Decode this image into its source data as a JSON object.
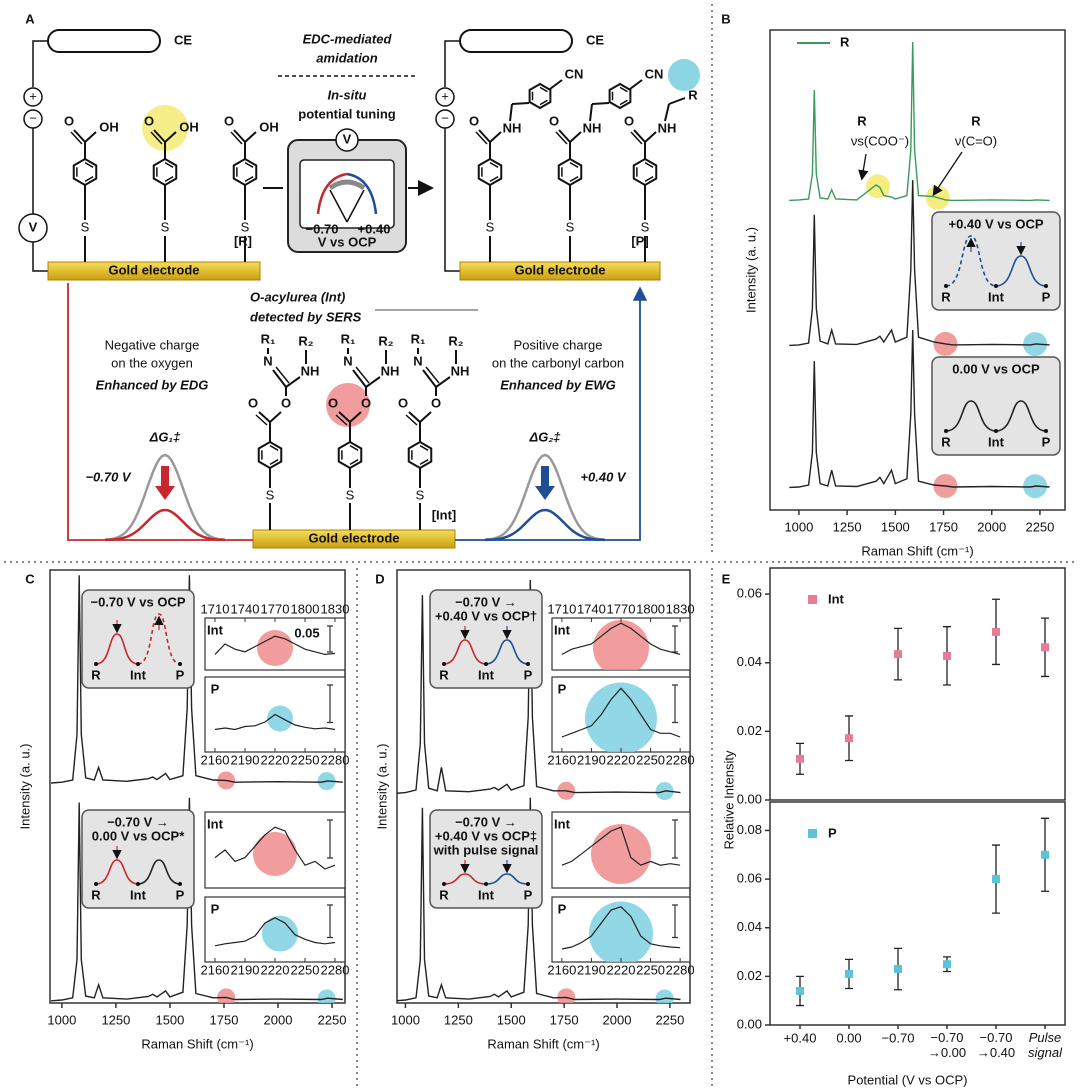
{
  "panel_a": {
    "label": "A",
    "counter_electrodes": [
      "CE",
      "CE"
    ],
    "electrodes": [
      "Gold electrode",
      "Gold electrode",
      "Gold electrode"
    ],
    "step_1": [
      "EDC-mediated",
      "amidation"
    ],
    "step_2": [
      "In-situ",
      "potential tuning"
    ],
    "meter": {
      "symbol": "V",
      "negative": "−0.70",
      "positive": "+0.40",
      "unit": "V vs OCP"
    },
    "potentiostat": {
      "plus": "+",
      "minus": "−",
      "symbol": "V"
    },
    "reactant": {
      "label": "[R]",
      "acid_o": [
        "O",
        "O",
        "O"
      ],
      "acid_oh": [
        "OH",
        "OH",
        "OH"
      ],
      "thiols": [
        "S",
        "S",
        "S"
      ]
    },
    "product": {
      "label": "[P]",
      "amide_o": [
        "O",
        "O",
        "O"
      ],
      "amide_nh": [
        "NH",
        "NH",
        "NH"
      ],
      "nitriles": [
        "CN",
        "CN"
      ],
      "alkyl": "R",
      "thiols": [
        "S",
        "S",
        "S"
      ]
    },
    "intermediate": {
      "label": "[Int]",
      "name": [
        "O-acylurea (Int)",
        "detected by SERS"
      ],
      "n": [
        "N",
        "N",
        "N"
      ],
      "nh": [
        "NH",
        "NH",
        "NH"
      ],
      "r1": [
        "R₁",
        "R₁",
        "R₁"
      ],
      "r2": [
        "R₂",
        "R₂",
        "R₂"
      ],
      "carbonyl_o": [
        "O",
        "O",
        "O"
      ],
      "ester_o": [
        "O",
        "O",
        "O"
      ],
      "thiols": [
        "S",
        "S",
        "S"
      ]
    },
    "left": {
      "note": [
        "Negative charge",
        "on the oxygen"
      ],
      "effect": "Enhanced by EDG",
      "barrier": "ΔG₁‡",
      "potential": "−0.70 V"
    },
    "right": {
      "note": [
        "Positive charge",
        "on the carbonyl carbon"
      ],
      "effect": "Enhanced by EWG",
      "barrier": "ΔG₂‡",
      "potential": "+0.40 V"
    }
  },
  "panels": {
    "b": {
      "label": "B",
      "peak_labels": [
        [
          "R",
          "νs(COO⁻)"
        ],
        [
          "R",
          "ν(C=O)"
        ]
      ],
      "diagrams": [
        {
          "title": [
            "+0.40 V vs OCP"
          ],
          "states": [
            "R",
            "Int",
            "P"
          ]
        },
        {
          "title": [
            "0.00 V vs OCP"
          ],
          "states": [
            "R",
            "Int",
            "P"
          ]
        }
      ]
    },
    "c": {
      "label": "C",
      "diagrams": [
        {
          "title": [
            "−0.70 V vs OCP"
          ],
          "states": [
            "R",
            "Int",
            "P"
          ]
        },
        {
          "title": [
            "−0.70 V →",
            "0.00 V vs OCP*"
          ],
          "states": [
            "R",
            "Int",
            "P"
          ]
        }
      ]
    },
    "d": {
      "label": "D",
      "diagrams": [
        {
          "title": [
            "−0.70 V →",
            "+0.40 V vs OCP†"
          ],
          "states": [
            "R",
            "Int",
            "P"
          ]
        },
        {
          "title": [
            "−0.70 V →",
            "+0.40 V vs OCP‡",
            "with pulse signal"
          ],
          "states": [
            "R",
            "Int",
            "P"
          ]
        }
      ]
    },
    "e": {
      "label": "E"
    }
  },
  "chart_data": [
    {
      "type": "line",
      "x_label": "Raman Shift (cm⁻¹)",
      "y_label": "Intensity (a. u.)",
      "xlim": [
        850,
        2380
      ],
      "xticks": [
        1000,
        1250,
        1500,
        1750,
        2000,
        2250
      ],
      "ylim": [
        0,
        100
      ],
      "x": [
        950,
        1000,
        1050,
        1070,
        1080,
        1090,
        1110,
        1150,
        1170,
        1190,
        1300,
        1400,
        1420,
        1440,
        1480,
        1500,
        1560,
        1580,
        1590,
        1600,
        1620,
        1700,
        1760,
        1800,
        2000,
        2200,
        2230,
        2300
      ],
      "series": [
        {
          "name": "R",
          "color": "#3a9a5b",
          "values": [
            64.5,
            64.6,
            64.8,
            70,
            87.5,
            70,
            65,
            64.8,
            66.7,
            64.8,
            64.6,
            67.7,
            67.2,
            65.5,
            65.2,
            64.8,
            65.5,
            75,
            97.5,
            75,
            65.5,
            65.3,
            64.6,
            64.5,
            64.6,
            64.5,
            64.6,
            64.5
          ]
        },
        {
          "color": "#222222",
          "values": [
            34.3,
            34.4,
            34.8,
            42,
            61.5,
            42,
            35.2,
            34.6,
            37.5,
            34.6,
            34.5,
            35.6,
            36.2,
            35,
            37.5,
            35,
            36,
            50,
            68.7,
            50,
            36,
            35,
            34.6,
            34.4,
            34.5,
            34.4,
            34.6,
            34.4
          ]
        },
        {
          "color": "#222222",
          "values": [
            4.7,
            4.8,
            5.2,
            12,
            31,
            12,
            5.5,
            5,
            8.3,
            5,
            4.9,
            6,
            6.8,
            5.5,
            8.3,
            5.5,
            6.5,
            20,
            37.5,
            20,
            6,
            5.2,
            5,
            4.8,
            4.9,
            4.8,
            5,
            4.8
          ]
        }
      ],
      "highlights": [
        {
          "x": 1410,
          "series": 0,
          "color": "#f3ea6a"
        },
        {
          "x": 1720,
          "series": 0,
          "color": "#f3ea6a"
        },
        {
          "x": 1760,
          "series": 1,
          "color": "#f08c8c"
        },
        {
          "x": 2225,
          "series": 1,
          "color": "#7fd0e0"
        },
        {
          "x": 1760,
          "series": 2,
          "color": "#f08c8c"
        },
        {
          "x": 2225,
          "series": 2,
          "color": "#7fd0e0"
        }
      ]
    },
    {
      "type": "line",
      "x_label": "Raman Shift (cm⁻¹)",
      "y_label": "Intensity (a. u.)",
      "xlim": [
        945,
        2310
      ],
      "xticks": [
        1000,
        1250,
        1500,
        1750,
        2000,
        2250
      ],
      "ylim": [
        0,
        100
      ],
      "x": [
        950,
        1000,
        1050,
        1070,
        1080,
        1090,
        1110,
        1150,
        1170,
        1190,
        1300,
        1400,
        1420,
        1440,
        1480,
        1500,
        1560,
        1580,
        1590,
        1600,
        1620,
        1700,
        1760,
        1800,
        2000,
        2200,
        2230,
        2300
      ],
      "series": [
        {
          "color": "#222222",
          "values": [
            50.8,
            51,
            51.5,
            62,
            98.8,
            62,
            52,
            51.5,
            54.4,
            51.5,
            51.2,
            51.8,
            52.2,
            51.6,
            53,
            51.6,
            52.5,
            68,
            98.8,
            68,
            52.5,
            51.5,
            51.4,
            51,
            51.1,
            51,
            51.3,
            51
          ]
        },
        {
          "color": "#222222",
          "values": [
            0.5,
            0.7,
            1.2,
            10,
            46.3,
            10,
            1.6,
            1.2,
            4.2,
            1.2,
            0.9,
            1.5,
            2,
            1.4,
            2.8,
            1.4,
            2.5,
            18,
            47.4,
            18,
            2.2,
            1.2,
            1.3,
            0.8,
            0.9,
            0.8,
            1.1,
            0.8
          ]
        }
      ],
      "highlights": [
        {
          "x": 1760,
          "series": 0,
          "color": "#f08c8c"
        },
        {
          "x": 2225,
          "series": 0,
          "color": "#7fd0e0"
        },
        {
          "x": 1760,
          "series": 1,
          "color": "#f08c8c"
        },
        {
          "x": 2225,
          "series": 1,
          "color": "#7fd0e0"
        }
      ]
    },
    {
      "type": "line",
      "x_label": "Raman Shift (cm⁻¹)",
      "y_label": "Intensity (a. u.)",
      "xlim": [
        960,
        2345
      ],
      "xticks": [
        1000,
        1250,
        1500,
        1750,
        2000,
        2250
      ],
      "ylim": [
        0,
        100
      ],
      "x": [
        950,
        1000,
        1050,
        1070,
        1080,
        1090,
        1110,
        1150,
        1170,
        1190,
        1300,
        1400,
        1420,
        1440,
        1480,
        1500,
        1560,
        1580,
        1590,
        1600,
        1620,
        1700,
        1760,
        1800,
        2000,
        2200,
        2230,
        2300
      ],
      "series": [
        {
          "color": "#222222",
          "values": [
            48.4,
            48.6,
            49.2,
            60,
            94.2,
            60,
            49.6,
            49,
            54.4,
            49,
            48.8,
            49.4,
            49.8,
            49.2,
            50.5,
            49.2,
            50.2,
            66,
            97.7,
            66,
            50,
            49,
            49,
            48.6,
            48.7,
            48.6,
            49,
            48.6
          ]
        },
        {
          "color": "#222222",
          "values": [
            0.5,
            0.7,
            1.2,
            10,
            45.1,
            10,
            1.6,
            1.2,
            4.2,
            1.2,
            0.9,
            1.5,
            2,
            1.4,
            2.8,
            1.4,
            2.5,
            18,
            47.4,
            18,
            2.2,
            1.2,
            1.3,
            0.8,
            0.9,
            0.8,
            1.1,
            0.8
          ]
        }
      ],
      "highlights": [
        {
          "x": 1760,
          "series": 0,
          "color": "#f08c8c"
        },
        {
          "x": 2225,
          "series": 0,
          "color": "#7fd0e0"
        },
        {
          "x": 1760,
          "series": 1,
          "color": "#f08c8c"
        },
        {
          "x": 2225,
          "series": 1,
          "color": "#7fd0e0"
        }
      ]
    },
    {
      "type": "scatter",
      "y_label": "Relative Intensity",
      "ylim": [
        0,
        0.0676
      ],
      "yticks": [
        {
          "value": 0,
          "label": "0.00"
        },
        0.02,
        0.04,
        0.06
      ],
      "series": [
        {
          "name": "Int",
          "color": "#e87c98",
          "values": [
            0.012,
            0.018,
            0.0425,
            0.042,
            0.049,
            0.0445
          ],
          "errors": [
            0.0045,
            0.0065,
            0.0075,
            0.0085,
            0.0095,
            0.0085
          ]
        }
      ]
    },
    {
      "type": "scatter",
      "x_label": "Potential (V vs OCP)",
      "categories": [
        "+0.40",
        "0.00",
        "−0.70",
        "−0.70\n→0.00",
        "−0.70\n→0.40",
        "Pulse\nsignal"
      ],
      "ylim": [
        0,
        0.0917
      ],
      "yticks": [
        {
          "value": 0,
          "label": "0.00"
        },
        0.02,
        0.04,
        0.06,
        0.08
      ],
      "series": [
        {
          "name": "P",
          "color": "#5bc4d8",
          "values": [
            0.014,
            0.021,
            0.023,
            0.025,
            0.06,
            0.07
          ],
          "errors": [
            0.006,
            0.006,
            0.0085,
            0.003,
            0.014,
            0.015
          ]
        }
      ]
    },
    {
      "type": "line",
      "label": "Int",
      "scale_bar": "0.05",
      "xlim": [
        1700,
        1840
      ],
      "xticks": [
        1710,
        1740,
        1770,
        1800,
        1830
      ],
      "ylim": [
        0,
        10
      ],
      "x": [
        1710,
        1720,
        1730,
        1740,
        1750,
        1760,
        1770,
        1780,
        1790,
        1800,
        1810,
        1820,
        1830
      ],
      "series": [
        {
          "color": "#222222",
          "values": [
            3,
            5,
            4,
            3.5,
            4.5,
            5.5,
            6.5,
            6,
            5,
            4,
            3.5,
            3,
            3.2
          ]
        }
      ],
      "highlights": [
        {
          "x": 1770,
          "color": "#f08c8c"
        }
      ]
    },
    {
      "type": "line",
      "label": "P",
      "xlim": [
        2150,
        2290
      ],
      "xticks": [
        2160,
        2190,
        2220,
        2250,
        2280
      ],
      "ylim": [
        0,
        10
      ],
      "x": [
        2160,
        2170,
        2180,
        2190,
        2200,
        2210,
        2220,
        2230,
        2240,
        2250,
        2260,
        2270,
        2280
      ],
      "series": [
        {
          "color": "#222222",
          "values": [
            3,
            3.2,
            3,
            3.4,
            3.5,
            4,
            5,
            4.3,
            3.6,
            3.3,
            3.1,
            3.2,
            3
          ]
        }
      ],
      "highlights": [
        {
          "x": 2225,
          "color": "#7fd0e0"
        }
      ]
    },
    {
      "type": "line",
      "label": "Int",
      "xlim": [
        1700,
        1840
      ],
      "ylim": [
        0,
        10
      ],
      "x": [
        1710,
        1720,
        1730,
        1740,
        1750,
        1760,
        1770,
        1780,
        1790,
        1800,
        1810,
        1820,
        1830
      ],
      "series": [
        {
          "color": "#222222",
          "values": [
            4,
            5,
            3.5,
            4,
            5.5,
            7,
            8,
            7.5,
            5,
            3,
            3.5,
            2.5,
            3
          ]
        }
      ],
      "highlights": [
        {
          "x": 1770,
          "color": "#f08c8c"
        }
      ]
    },
    {
      "type": "line",
      "label": "P",
      "xlim": [
        2150,
        2290
      ],
      "xticks": [
        2160,
        2190,
        2220,
        2250,
        2280
      ],
      "ylim": [
        0,
        10
      ],
      "x": [
        2160,
        2170,
        2180,
        2190,
        2200,
        2210,
        2220,
        2230,
        2240,
        2250,
        2260,
        2270,
        2280
      ],
      "series": [
        {
          "color": "#222222",
          "values": [
            2.5,
            2.8,
            3,
            3.2,
            4,
            6,
            6.8,
            6,
            4.2,
            3.5,
            3,
            2.8,
            3
          ]
        }
      ],
      "highlights": [
        {
          "x": 2225,
          "color": "#7fd0e0"
        }
      ]
    },
    {
      "type": "line",
      "label": "Int",
      "xlim": [
        1700,
        1840
      ],
      "xticks": [
        1710,
        1740,
        1770,
        1800,
        1830
      ],
      "ylim": [
        0,
        10
      ],
      "x": [
        1710,
        1720,
        1730,
        1740,
        1750,
        1760,
        1770,
        1780,
        1790,
        1800,
        1810,
        1820,
        1830
      ],
      "series": [
        {
          "color": "#222222",
          "values": [
            3,
            4,
            4.5,
            5,
            6.5,
            8,
            9,
            8,
            6.5,
            5,
            4,
            3.5,
            3
          ]
        }
      ],
      "highlights": [
        {
          "x": 1770,
          "color": "#f08c8c"
        }
      ]
    },
    {
      "type": "line",
      "label": "P",
      "xlim": [
        2150,
        2290
      ],
      "xticks": [
        2160,
        2190,
        2220,
        2250,
        2280
      ],
      "ylim": [
        0,
        10
      ],
      "x": [
        2160,
        2170,
        2180,
        2190,
        2200,
        2210,
        2220,
        2230,
        2240,
        2250,
        2260,
        2270,
        2280
      ],
      "series": [
        {
          "color": "#222222",
          "values": [
            2,
            2.5,
            3,
            3.5,
            5,
            7,
            8.5,
            7,
            5,
            3,
            2.5,
            2.5,
            2
          ]
        }
      ],
      "highlights": [
        {
          "x": 2220,
          "color": "#7fd0e0"
        }
      ]
    },
    {
      "type": "line",
      "label": "Int",
      "xlim": [
        1700,
        1840
      ],
      "ylim": [
        0,
        10
      ],
      "x": [
        1710,
        1720,
        1730,
        1740,
        1750,
        1760,
        1770,
        1780,
        1790,
        1800,
        1810,
        1820,
        1830
      ],
      "series": [
        {
          "color": "#222222",
          "values": [
            3,
            3.5,
            4.5,
            5.5,
            6.5,
            7.5,
            8,
            4,
            3,
            3.5,
            3,
            3.2,
            3
          ]
        }
      ],
      "highlights": [
        {
          "x": 1770,
          "color": "#f08c8c"
        }
      ]
    },
    {
      "type": "line",
      "label": "P",
      "xlim": [
        2150,
        2290
      ],
      "xticks": [
        2160,
        2190,
        2220,
        2250,
        2280
      ],
      "ylim": [
        0,
        10
      ],
      "x": [
        2160,
        2170,
        2180,
        2190,
        2200,
        2210,
        2220,
        2230,
        2240,
        2250,
        2260,
        2270,
        2280
      ],
      "series": [
        {
          "color": "#222222",
          "values": [
            2,
            2.3,
            3,
            4,
            6,
            8,
            8.5,
            7,
            4,
            2.8,
            2.5,
            2.3,
            2.2
          ]
        }
      ],
      "highlights": [
        {
          "x": 2220,
          "color": "#7fd0e0"
        }
      ]
    }
  ]
}
